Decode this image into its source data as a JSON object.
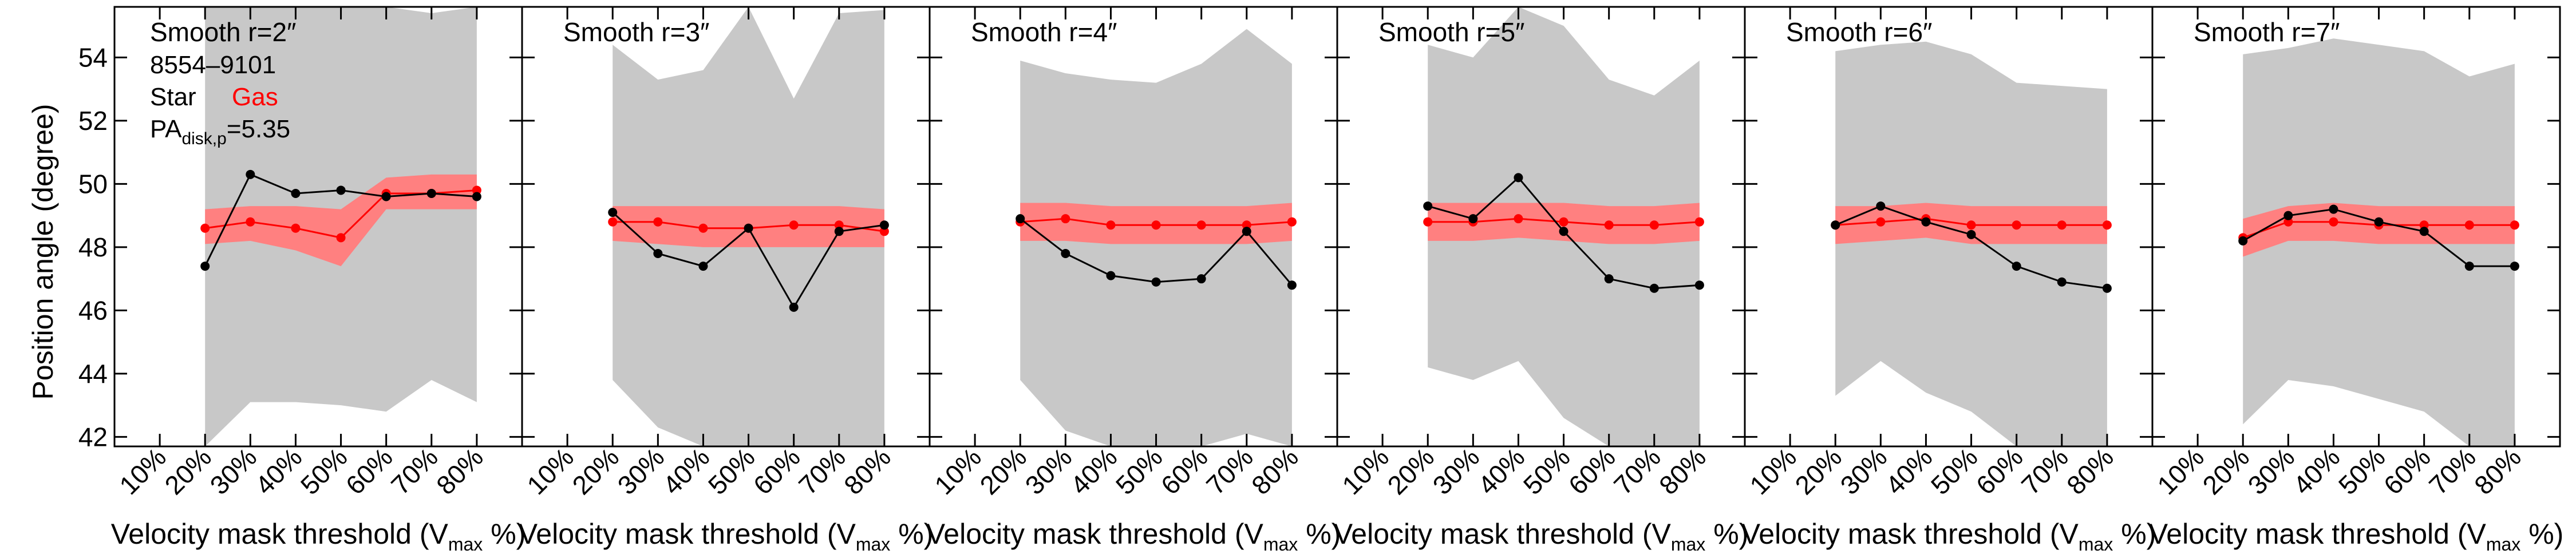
{
  "chart_data": {
    "type": "line",
    "ylabel": "Position angle (degree)",
    "xlabel_main": "Velocity mask threshold (V",
    "xlabel_sub": "max",
    "xlabel_end": " %)",
    "ylim": [
      41.7,
      55.6
    ],
    "y_ticks": [
      42,
      44,
      46,
      48,
      50,
      52,
      54
    ],
    "xlim": [
      0,
      90
    ],
    "x": [
      10,
      20,
      30,
      40,
      50,
      60,
      70,
      80
    ],
    "x_tick_labels": [
      "10%",
      "20%",
      "30%",
      "40%",
      "50%",
      "60%",
      "70%",
      "80%"
    ],
    "grid": false,
    "info": {
      "plate_ifu": "8554–9101",
      "legend_star": "Star",
      "legend_gas": "Gas",
      "pa_prefix": "PA",
      "pa_sub": "disk,p",
      "pa_value": "=5.35"
    },
    "colors": {
      "star": "#000000",
      "gas": "#ff0000",
      "gas_band": "#ff8080",
      "star_band": "#c8c8c8"
    },
    "panels": [
      {
        "title": "Smooth r=2″",
        "star_x": [
          20,
          30,
          40,
          50,
          60,
          70,
          80
        ],
        "star": [
          47.4,
          50.3,
          49.7,
          49.8,
          49.6,
          49.7,
          49.6
        ],
        "gas": [
          48.6,
          48.8,
          48.6,
          48.3,
          49.7,
          49.7,
          49.8
        ],
        "gas_lower": [
          48.1,
          48.2,
          47.9,
          47.4,
          49.2,
          49.2,
          49.2
        ],
        "gas_upper": [
          49.2,
          49.3,
          49.3,
          49.2,
          50.2,
          50.3,
          50.3
        ],
        "star_lower": [
          41.7,
          43.1,
          43.1,
          43.0,
          42.8,
          43.8,
          43.1
        ],
        "star_upper": [
          55.6,
          55.6,
          55.6,
          55.6,
          55.6,
          55.4,
          55.6
        ]
      },
      {
        "title": "Smooth r=3″",
        "star_x": [
          20,
          30,
          40,
          50,
          60,
          70,
          80
        ],
        "star": [
          49.1,
          47.8,
          47.4,
          48.6,
          46.1,
          48.5,
          48.7
        ],
        "gas": [
          48.8,
          48.8,
          48.6,
          48.6,
          48.7,
          48.7,
          48.5
        ],
        "gas_lower": [
          48.2,
          48.1,
          48.0,
          48.0,
          48.0,
          48.0,
          48.0
        ],
        "gas_upper": [
          49.3,
          49.3,
          49.3,
          49.3,
          49.3,
          49.3,
          49.2
        ],
        "star_lower": [
          43.8,
          42.3,
          41.7,
          41.7,
          41.7,
          41.7,
          41.7
        ],
        "star_upper": [
          54.4,
          53.3,
          53.6,
          55.6,
          52.7,
          55.4,
          55.5
        ]
      },
      {
        "title": "Smooth r=4″",
        "star_x": [
          20,
          30,
          40,
          50,
          60,
          70,
          80
        ],
        "star": [
          48.9,
          47.8,
          47.1,
          46.9,
          47.0,
          48.5,
          46.8
        ],
        "gas": [
          48.8,
          48.9,
          48.7,
          48.7,
          48.7,
          48.7,
          48.8
        ],
        "gas_lower": [
          48.2,
          48.2,
          48.1,
          48.1,
          48.1,
          48.1,
          48.2
        ],
        "gas_upper": [
          49.4,
          49.4,
          49.3,
          49.3,
          49.3,
          49.3,
          49.4
        ],
        "star_lower": [
          43.8,
          42.2,
          41.7,
          41.7,
          41.7,
          42.1,
          41.7
        ],
        "star_upper": [
          53.9,
          53.5,
          53.3,
          53.2,
          53.8,
          54.9,
          53.8
        ]
      },
      {
        "title": "Smooth r=5″",
        "star_x": [
          20,
          30,
          40,
          50,
          60,
          70,
          80
        ],
        "star": [
          49.3,
          48.9,
          50.2,
          48.5,
          47.0,
          46.7,
          46.8
        ],
        "gas": [
          48.8,
          48.8,
          48.9,
          48.8,
          48.7,
          48.7,
          48.8
        ],
        "gas_lower": [
          48.2,
          48.2,
          48.3,
          48.2,
          48.1,
          48.1,
          48.2
        ],
        "gas_upper": [
          49.4,
          49.4,
          49.4,
          49.4,
          49.3,
          49.3,
          49.4
        ],
        "star_lower": [
          44.2,
          43.8,
          44.4,
          42.6,
          41.7,
          41.7,
          41.7
        ],
        "star_upper": [
          54.4,
          54.0,
          55.6,
          55.0,
          53.3,
          52.8,
          53.9
        ]
      },
      {
        "title": "Smooth r=6″",
        "star_x": [
          20,
          30,
          40,
          50,
          60,
          70,
          80
        ],
        "star": [
          48.7,
          49.3,
          48.8,
          48.4,
          47.4,
          46.9,
          46.7
        ],
        "gas": [
          48.7,
          48.8,
          48.9,
          48.7,
          48.7,
          48.7,
          48.7
        ],
        "gas_lower": [
          48.1,
          48.2,
          48.3,
          48.1,
          48.1,
          48.1,
          48.1
        ],
        "gas_upper": [
          49.3,
          49.3,
          49.4,
          49.3,
          49.3,
          49.3,
          49.3
        ],
        "star_lower": [
          43.3,
          44.4,
          43.4,
          42.8,
          41.7,
          41.7,
          41.7
        ],
        "star_upper": [
          54.2,
          54.4,
          54.5,
          54.1,
          53.2,
          53.1,
          53.0
        ]
      },
      {
        "title": "Smooth r=7″",
        "star_x": [
          20,
          30,
          40,
          50,
          60,
          70,
          80
        ],
        "star": [
          48.2,
          49.0,
          49.2,
          48.8,
          48.5,
          47.4,
          47.4
        ],
        "gas": [
          48.3,
          48.8,
          48.8,
          48.7,
          48.7,
          48.7,
          48.7
        ],
        "gas_lower": [
          47.7,
          48.2,
          48.2,
          48.1,
          48.1,
          48.1,
          48.1
        ],
        "gas_upper": [
          48.9,
          49.3,
          49.4,
          49.3,
          49.3,
          49.3,
          49.3
        ],
        "star_lower": [
          42.4,
          43.8,
          43.6,
          43.2,
          42.8,
          41.7,
          41.7
        ],
        "star_upper": [
          54.1,
          54.3,
          54.6,
          54.4,
          54.2,
          53.4,
          53.8
        ]
      }
    ]
  }
}
